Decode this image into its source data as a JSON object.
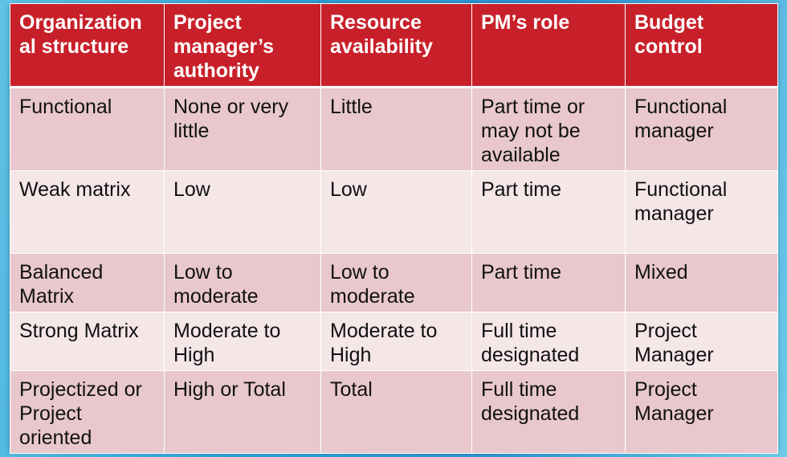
{
  "headers": [
    "Organization al structure",
    "Project manager’s authority",
    "Resource availability",
    "PM’s role",
    "Budget control"
  ],
  "rows": [
    [
      "Functional",
      "None or very little",
      "Little",
      "Part time or may not be available",
      "Functional manager"
    ],
    [
      "Weak matrix",
      "Low",
      "Low",
      "Part time",
      "Functional manager"
    ],
    [
      "Balanced Matrix",
      "Low to moderate",
      "Low to moderate",
      "Part time",
      "Mixed"
    ],
    [
      "Strong Matrix",
      "Moderate to High",
      "Moderate to High",
      "Full time designated",
      "Project Manager"
    ],
    [
      "Projectized or Project oriented",
      "High or Total",
      "Total",
      "Full time designated",
      "Project Manager"
    ]
  ],
  "colors": {
    "header": "#c8202a",
    "row_dark": "#e8c8cc",
    "row_light": "#f5e6e8"
  }
}
